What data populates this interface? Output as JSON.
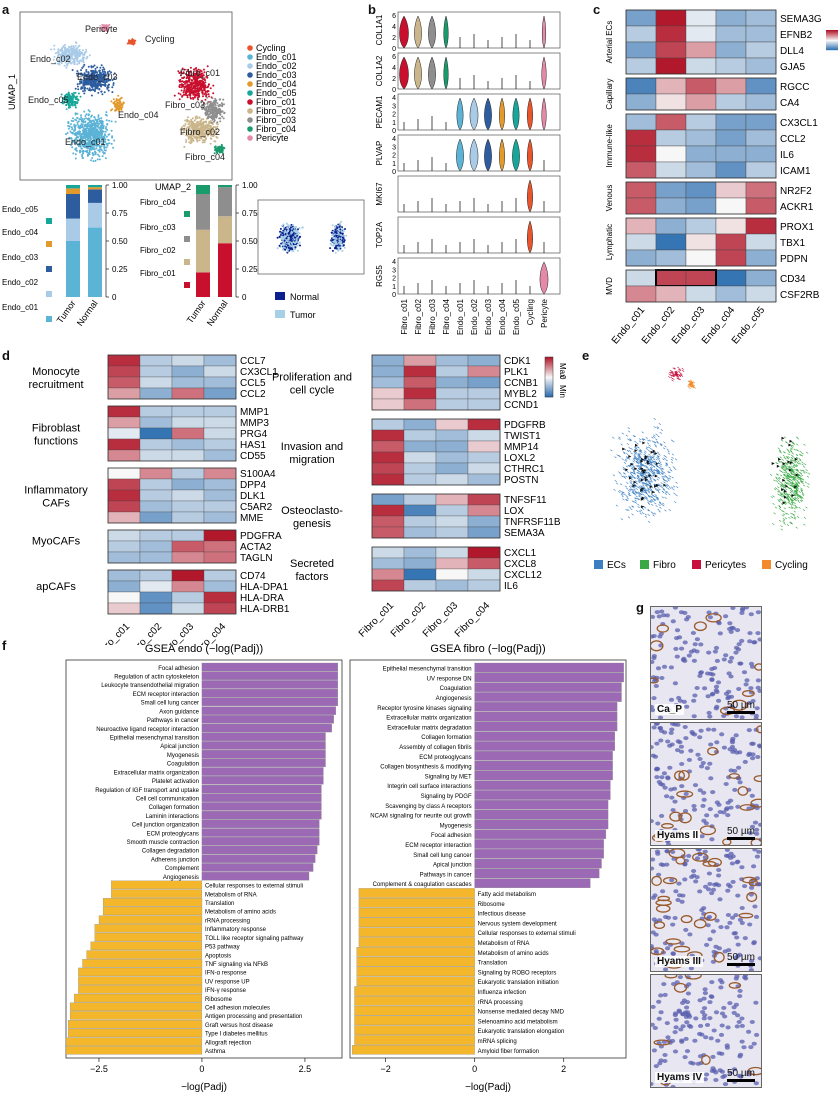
{
  "panel_labels": [
    "a",
    "b",
    "c",
    "d",
    "e",
    "f",
    "g"
  ],
  "umap": {
    "xlabel": "UMAP_2",
    "ylabel": "UMAP_1",
    "cluster_labels": [
      "Pericyte",
      "Cycling",
      "Endo_c02",
      "Endo_c03",
      "Endo_c05",
      "Endo_c04",
      "Endo_c01",
      "Fibro_c01",
      "Fibro_c03",
      "Fibro_c02",
      "Fibro_c04"
    ],
    "legend": [
      {
        "name": "Cycling",
        "color": "#e8542c"
      },
      {
        "name": "Endo_c01",
        "color": "#5bb3d6"
      },
      {
        "name": "Endo_c02",
        "color": "#a9cbe8"
      },
      {
        "name": "Endo_c03",
        "color": "#2e5d9f"
      },
      {
        "name": "Endo_c04",
        "color": "#e39a2d"
      },
      {
        "name": "Endo_c05",
        "color": "#16a79a"
      },
      {
        "name": "Fibro_c01",
        "color": "#c8102e"
      },
      {
        "name": "Fibro_c02",
        "color": "#cbb58a"
      },
      {
        "name": "Fibro_c03",
        "color": "#8e8e8e"
      },
      {
        "name": "Fibro_c04",
        "color": "#1a9b6c"
      },
      {
        "name": "Pericyte",
        "color": "#e28aa6"
      }
    ]
  },
  "stacked_bars": {
    "endo": {
      "categories": [
        "Tumor",
        "Normal"
      ],
      "row_labels": [
        "Endo_c05",
        "Endo_c04",
        "Endo_c03",
        "Endo_c02",
        "Endo_c01"
      ],
      "ticks": [
        "1.00",
        "0.75",
        "0.50",
        "0.25",
        "0"
      ],
      "series": [
        {
          "name": "Endo_c01",
          "color": "#5bb3d6",
          "values": [
            0.5,
            0.62
          ]
        },
        {
          "name": "Endo_c02",
          "color": "#a9cbe8",
          "values": [
            0.2,
            0.22
          ]
        },
        {
          "name": "Endo_c03",
          "color": "#2e5d9f",
          "values": [
            0.22,
            0.12
          ]
        },
        {
          "name": "Endo_c04",
          "color": "#e39a2d",
          "values": [
            0.05,
            0.02
          ]
        },
        {
          "name": "Endo_c05",
          "color": "#16a79a",
          "values": [
            0.03,
            0.02
          ]
        }
      ]
    },
    "fibro": {
      "categories": [
        "Tumor",
        "Normal"
      ],
      "row_labels": [
        "Fibro_c04",
        "Fibro_c03",
        "Fibro_c02",
        "Fibro_c01"
      ],
      "ticks": [
        "1.00",
        "0.75",
        "0.50",
        "0.25",
        "0"
      ],
      "series": [
        {
          "name": "Fibro_c01",
          "color": "#c8102e",
          "values": [
            0.22,
            0.48
          ]
        },
        {
          "name": "Fibro_c02",
          "color": "#cbb58a",
          "values": [
            0.38,
            0.24
          ]
        },
        {
          "name": "Fibro_c03",
          "color": "#8e8e8e",
          "values": [
            0.32,
            0.26
          ]
        },
        {
          "name": "Fibro_c04",
          "color": "#1a9b6c",
          "values": [
            0.08,
            0.02
          ]
        }
      ]
    },
    "umap_legend": [
      {
        "name": "Normal",
        "color": "#0b1f8f"
      },
      {
        "name": "Tumor",
        "color": "#a7cfe6"
      }
    ]
  },
  "violin": {
    "genes": [
      "COL1A1",
      "COL1A2",
      "PECAM1",
      "PLVAP",
      "MKI67",
      "TOP2A",
      "RGS5"
    ],
    "ticks": [
      [
        "6",
        "4",
        "2",
        "0"
      ],
      [
        "6",
        "4",
        "2",
        "0"
      ],
      [
        "4",
        "3",
        "2",
        "1",
        "0"
      ],
      [
        "4",
        "3",
        "2",
        "1",
        "0"
      ],
      [
        "",
        ""
      ],
      [
        "",
        ""
      ],
      [
        "4",
        "3",
        "2",
        "1",
        "0"
      ]
    ],
    "clusters": [
      "Fibro_c01",
      "Fibro_c02",
      "Fibro_c03",
      "Fibro_c04",
      "Endo_c01",
      "Endo_c02",
      "Endo_c03",
      "Endo_c04",
      "Endo_c05",
      "Cycling",
      "Pericyte"
    ],
    "colors": [
      "#c8102e",
      "#cbb58a",
      "#8e8e8e",
      "#1a9b6c",
      "#5bb3d6",
      "#a9cbe8",
      "#2e5d9f",
      "#e39a2d",
      "#16a79a",
      "#e8542c",
      "#e28aa6"
    ],
    "width": [
      [
        1,
        0.8,
        0.8,
        0.5,
        0,
        0,
        0,
        0,
        0,
        0,
        0.4
      ],
      [
        1,
        0.8,
        0.8,
        0.5,
        0,
        0,
        0,
        0,
        0,
        0,
        0.5
      ],
      [
        0,
        0,
        0,
        0,
        0.7,
        0.9,
        0.8,
        0.6,
        0.7,
        0.6,
        0.5
      ],
      [
        0,
        0,
        0,
        0,
        0.8,
        0.9,
        0.8,
        0.6,
        0.8,
        0.6,
        0
      ],
      [
        0,
        0,
        0,
        0,
        0,
        0,
        0,
        0,
        0,
        0.6,
        0
      ],
      [
        0,
        0,
        0,
        0,
        0,
        0,
        0,
        0,
        0,
        0.6,
        0
      ],
      [
        0,
        0,
        0,
        0,
        0,
        0,
        0,
        0,
        0,
        0,
        0.9
      ]
    ]
  },
  "heatmap_c": {
    "columns": [
      "Endo_c01",
      "Endo_c02",
      "Endo_c03",
      "Endo_c04",
      "Endo_c05"
    ],
    "groups": [
      {
        "name": "Arterial ECs",
        "genes": [
          "SEMA3G",
          "EFNB2",
          "DLL4",
          "GJA5"
        ],
        "values": [
          [
            -0.6,
            1.0,
            -0.1,
            -0.5,
            -0.4
          ],
          [
            -0.3,
            0.9,
            -0.1,
            -0.4,
            -0.4
          ],
          [
            -0.6,
            0.8,
            0.4,
            -0.5,
            -0.3
          ],
          [
            -0.3,
            1.0,
            -0.2,
            -0.3,
            -0.4
          ]
        ]
      },
      {
        "name": "Capillary",
        "genes": [
          "RGCC",
          "CA4"
        ],
        "values": [
          [
            -0.8,
            0.3,
            0.7,
            0.4,
            -0.7
          ],
          [
            -0.5,
            0.1,
            0.4,
            -0.3,
            -0.4
          ]
        ]
      },
      {
        "name": "Immune-like",
        "genes": [
          "CX3CL1",
          "CCL2",
          "IL6",
          "ICAM1"
        ],
        "values": [
          [
            -0.4,
            0.7,
            -0.3,
            -0.6,
            -0.6
          ],
          [
            0.9,
            -0.3,
            -0.4,
            -0.6,
            -0.4
          ],
          [
            0.9,
            0.0,
            -0.5,
            -0.5,
            -0.5
          ],
          [
            0.7,
            -0.2,
            -0.4,
            -0.7,
            -0.3
          ]
        ]
      },
      {
        "name": "Venous",
        "genes": [
          "NR2F2",
          "ACKR1"
        ],
        "values": [
          [
            0.7,
            -0.6,
            -0.7,
            0.2,
            0.6
          ],
          [
            0.7,
            -0.5,
            -0.6,
            0.0,
            0.7
          ]
        ]
      },
      {
        "name": "Lymphatic",
        "genes": [
          "PROX1",
          "TBX1",
          "PDPN"
        ],
        "values": [
          [
            0.3,
            -0.5,
            -0.3,
            0.1,
            0.9
          ],
          [
            -0.2,
            -0.9,
            0.1,
            0.8,
            -0.2
          ],
          [
            -0.5,
            -0.4,
            0.0,
            0.8,
            -0.5
          ]
        ]
      },
      {
        "name": "MVD",
        "genes": [
          "CD34",
          "CSF2RB"
        ],
        "values": [
          [
            -0.2,
            0.8,
            0.8,
            -0.9,
            -0.5
          ],
          [
            0.5,
            0.3,
            -0.2,
            -0.4,
            -0.2
          ]
        ]
      }
    ],
    "boxed_row": "CD34"
  },
  "heatmap_d": {
    "columns": [
      "Fibro_c01",
      "Fibro_c02",
      "Fibro_c03",
      "Fibro_c04"
    ],
    "legend": {
      "max": "Max",
      "mid": "0",
      "min": "Min"
    },
    "left_groups": [
      {
        "name": "Monocyte recruitment",
        "genes": [
          "CCL7",
          "CX3CL1",
          "CCL5",
          "CCL2"
        ],
        "values": [
          [
            0.9,
            -0.3,
            -0.2,
            -0.4
          ],
          [
            0.8,
            -0.3,
            -0.5,
            -0.2
          ],
          [
            0.7,
            -0.2,
            -0.4,
            -0.4
          ],
          [
            0.4,
            -0.5,
            0.6,
            -0.6
          ]
        ]
      },
      {
        "name": "Fibroblast functions",
        "genes": [
          "MMP1",
          "MMP3",
          "PRG4",
          "HAS1",
          "CD55"
        ],
        "values": [
          [
            0.9,
            -0.3,
            -0.3,
            -0.3
          ],
          [
            0.4,
            -0.4,
            -0.2,
            -0.2
          ],
          [
            -0.1,
            -0.9,
            0.6,
            -0.2
          ],
          [
            0.9,
            -0.3,
            -0.4,
            -0.3
          ],
          [
            0.5,
            -0.2,
            -0.2,
            -0.4
          ]
        ]
      },
      {
        "name": "Inflammatory CAFs",
        "genes": [
          "S100A4",
          "DPP4",
          "DLK1",
          "C5AR2",
          "MME"
        ],
        "values": [
          [
            0.0,
            0.5,
            -0.3,
            0.5
          ],
          [
            0.8,
            -0.3,
            -0.5,
            -0.4
          ],
          [
            0.9,
            -0.3,
            -0.2,
            -0.4
          ],
          [
            0.8,
            -0.4,
            -0.3,
            -0.3
          ],
          [
            0.3,
            -0.6,
            -0.3,
            -0.4
          ]
        ]
      },
      {
        "name": "MyoCAFs",
        "genes": [
          "PDGFRA",
          "ACTA2",
          "TAGLN"
        ],
        "values": [
          [
            -0.2,
            -0.3,
            -0.3,
            1.0
          ],
          [
            -0.3,
            -0.4,
            0.7,
            0.6
          ],
          [
            -0.4,
            -0.4,
            0.5,
            0.6
          ]
        ]
      },
      {
        "name": "apCAFs",
        "genes": [
          "CD74",
          "HLA-DPA1",
          "HLA-DRA",
          "HLA-DRB1"
        ],
        "values": [
          [
            -0.4,
            -0.3,
            1.0,
            -0.3
          ],
          [
            -0.5,
            -0.1,
            0.5,
            -0.4
          ],
          [
            0.0,
            -0.7,
            -0.3,
            0.9
          ],
          [
            0.2,
            -0.7,
            -0.2,
            0.8
          ]
        ]
      }
    ],
    "right_groups": [
      {
        "name": "Proliferation and cell cycle",
        "genes": [
          "CDK1",
          "PLK1",
          "CCNB1",
          "MYBL2",
          "CCND1"
        ],
        "values": [
          [
            -0.5,
            0.4,
            -0.4,
            -0.5
          ],
          [
            -0.5,
            0.9,
            -0.3,
            0.5
          ],
          [
            -0.4,
            0.7,
            -0.5,
            -0.6
          ],
          [
            0.2,
            0.9,
            -0.3,
            -0.3
          ],
          [
            0.2,
            0.6,
            -0.3,
            -0.3
          ]
        ]
      },
      {
        "name": "Invasion and migration",
        "genes": [
          "PDGFRB",
          "TWIST1",
          "MMP14",
          "LOXL2",
          "CTHRC1",
          "POSTN"
        ],
        "values": [
          [
            -0.3,
            -0.5,
            0.2,
            0.9
          ],
          [
            0.9,
            -0.3,
            -0.4,
            -0.2
          ],
          [
            0.7,
            -0.5,
            -0.5,
            0.2
          ],
          [
            0.9,
            -0.2,
            -0.4,
            -0.3
          ],
          [
            0.8,
            -0.3,
            -0.5,
            -0.2
          ],
          [
            0.9,
            -0.3,
            -0.2,
            -0.4
          ]
        ]
      },
      {
        "name": "Osteoclasto- genesis",
        "genes": [
          "TNFSF11",
          "LOX",
          "TNFRSF11B",
          "SEMA3A"
        ],
        "values": [
          [
            -0.6,
            -0.3,
            0.3,
            0.8
          ],
          [
            0.9,
            -0.8,
            -0.3,
            0.5
          ],
          [
            0.7,
            -0.3,
            -0.2,
            -0.5
          ],
          [
            0.7,
            -0.4,
            -0.3,
            -0.6
          ]
        ]
      },
      {
        "name": "Secreted factors",
        "genes": [
          "CXCL1",
          "CXCL8",
          "CXCL12",
          "IL6"
        ],
        "values": [
          [
            -0.2,
            -0.4,
            -0.2,
            1.0
          ],
          [
            -0.4,
            -0.5,
            0.3,
            0.7
          ],
          [
            0.5,
            -0.9,
            0.0,
            -0.2
          ],
          [
            0.8,
            -0.3,
            -0.4,
            -0.3
          ]
        ]
      }
    ]
  },
  "panel_e": {
    "legend": [
      {
        "name": "ECs",
        "color": "#3b7fc0"
      },
      {
        "name": "Fibro",
        "color": "#3aa845"
      },
      {
        "name": "Pericytes",
        "color": "#c8103e"
      },
      {
        "name": "Cycling",
        "color": "#f08a2c"
      }
    ]
  },
  "chart_data": [
    {
      "type": "bar",
      "title": "GSEA endo (−log(Padj))",
      "xlabel": "−log(Padj)",
      "xticks": [
        "−2.5",
        "0",
        "2.5"
      ],
      "xlim": [
        -3.3,
        3.4
      ],
      "bar_color_pos": "#9c6ab5",
      "bar_color_neg": "#f4b72b",
      "categories": [
        "Focal adhesion",
        "Regulation of actin cytoskeleton",
        "Leukocyte transendothelial migration",
        "ECM receptor interaction",
        "Small cell lung cancer",
        "Axon guidance",
        "Pathways in cancer",
        "Neuroactive ligand receptor interaction",
        "Epithelial mesenchymal transition",
        "Apical junction",
        "Myogenesis",
        "Coagulation",
        "Extracellular matrix organization",
        "Platelet activation",
        "Regulation of IGF transport and uptake",
        "Cell cell communication",
        "Collagen formation",
        "Laminin interactions",
        "Cell junction organization",
        "ECM proteoglycans",
        "Smooth muscle contraction",
        "Collagen degradation",
        "Adherens junction",
        "Complement",
        "Angiogenesis",
        "Cellular responses to external stimuli",
        "Metabolism of RNA",
        "Translation",
        "Metabolism of amino acids",
        "rRNA processing",
        "Inflammatory response",
        "TOLL like receptor signaling pathway",
        "P53 pathway",
        "Apoptosis",
        "TNF signaling via NFkB",
        "IFN-α response",
        "UV response UP",
        "IFN-γ response",
        "Ribosome",
        "Cell adhesion molecules",
        "Antigen processing and presentation",
        "Graft versus host disease",
        "Type I diabetes mellitus",
        "Allograft rejection",
        "Asthma"
      ],
      "values": [
        3.3,
        3.3,
        3.3,
        3.3,
        3.3,
        3.25,
        3.2,
        3.15,
        3.0,
        3.0,
        3.0,
        3.0,
        2.95,
        2.95,
        2.9,
        2.9,
        2.9,
        2.9,
        2.85,
        2.85,
        2.85,
        2.8,
        2.75,
        2.7,
        2.6,
        -2.2,
        -2.2,
        -2.4,
        -2.4,
        -2.5,
        -2.6,
        -2.6,
        -2.7,
        -2.8,
        -2.9,
        -3.0,
        -3.0,
        -3.0,
        -3.1,
        -3.2,
        -3.2,
        -3.25,
        -3.25,
        -3.3,
        -3.3
      ]
    },
    {
      "type": "bar",
      "title": "GSEA fibro (−log(Padj))",
      "xlabel": "−log(Padj)",
      "xticks": [
        "−2",
        "0",
        "2"
      ],
      "xlim": [
        -2.8,
        3.4
      ],
      "bar_color_pos": "#9c6ab5",
      "bar_color_neg": "#f4b72b",
      "categories": [
        "Epithelial mesenchymal transition",
        "UV response DN",
        "Coagulation",
        "Angiogenesis",
        "Receptor tyrosine kinases signaling",
        "Extracellular matrix organization",
        "Extracellular matrix degradation",
        "Collagen formation",
        "Assembly of collagen fibrils",
        "ECM proteoglycans",
        "Collagen biosynthesis & modifying",
        "Signaling by MET",
        "Integrin cell surface interactions",
        "Signaling by PDGF",
        "Scavenging by class A receptors",
        "NCAM signaling for neurite out growth",
        "Myogenesis",
        "Focal adhesion",
        "ECM receptor interaction",
        "Small cell lung cancer",
        "Apical junction",
        "Pathways in cancer",
        "Complement & coagulation cascades",
        "Fatty acid metabolism",
        "Ribosome",
        "Infectious disease",
        "Nervous system development",
        "Cellular responses to external stimuli",
        "Metabolism of RNA",
        "Metabolism of amino acids",
        "Translation",
        "Signaling by ROBO receptors",
        "Eukaryotic translation initiation",
        "Influenza infection",
        "rRNA processing",
        "Nonsense mediated decay NMD",
        "Selenoamino acid metabolism",
        "Eukaryotic translation elongation",
        "mRNA splicing",
        "Amyloid fiber formation"
      ],
      "values": [
        3.35,
        3.35,
        3.3,
        3.3,
        3.2,
        3.2,
        3.2,
        3.15,
        3.15,
        3.1,
        3.1,
        3.1,
        3.05,
        3.05,
        3.0,
        3.0,
        3.0,
        2.95,
        2.9,
        2.9,
        2.85,
        2.8,
        2.6,
        -2.6,
        -2.6,
        -2.6,
        -2.6,
        -2.6,
        -2.6,
        -2.65,
        -2.65,
        -2.65,
        -2.65,
        -2.7,
        -2.7,
        -2.7,
        -2.7,
        -2.7,
        -2.7,
        -2.75
      ]
    }
  ],
  "micrographs": [
    {
      "name": "Ca_P",
      "scale": "50 µm",
      "density": 0.22
    },
    {
      "name": "Hyams II",
      "scale": "50 µm",
      "density": 0.45
    },
    {
      "name": "Hyams III",
      "scale": "50 µm",
      "density": 0.6
    },
    {
      "name": "Hyams IV",
      "scale": "50 µm",
      "density": 0.2
    }
  ]
}
